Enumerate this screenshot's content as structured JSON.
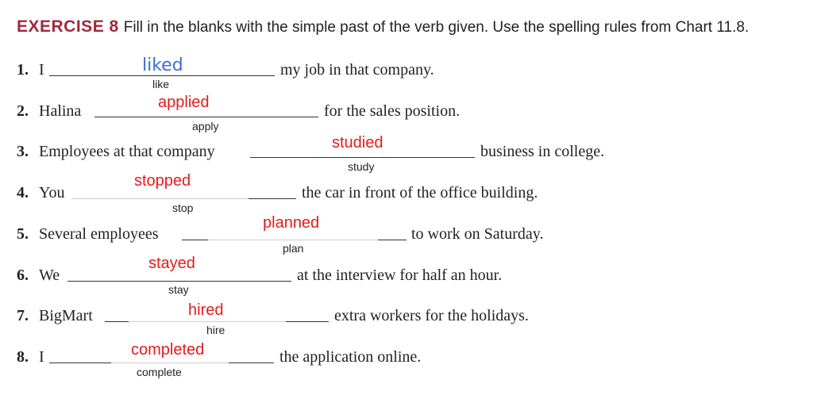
{
  "header": {
    "label": "EXERCISE 8",
    "instruction": "Fill in the blanks with the simple past of the verb given. Use the spelling rules from Chart 11.8."
  },
  "items": [
    {
      "num": "1.",
      "before": "I",
      "answer": "liked",
      "verb": "like",
      "after": "my job in that company."
    },
    {
      "num": "2.",
      "before": "Halina",
      "answer": "applied",
      "verb": "apply",
      "after": "for the sales position."
    },
    {
      "num": "3.",
      "before": "Employees at that company",
      "answer": "studied",
      "verb": "study",
      "after": "business in college."
    },
    {
      "num": "4.",
      "before": "You",
      "answer": "stopped",
      "verb": "stop",
      "after": "the car in front of the office building."
    },
    {
      "num": "5.",
      "before": "Several employees",
      "answer": "planned",
      "verb": "plan",
      "after": "to work on Saturday."
    },
    {
      "num": "6.",
      "before": "We",
      "answer": "stayed",
      "verb": "stay",
      "after": "at the interview for half an hour."
    },
    {
      "num": "7.",
      "before": "BigMart",
      "answer": "hired",
      "verb": "hire",
      "after": "extra workers for the holidays."
    },
    {
      "num": "8.",
      "before": "I",
      "answer": "completed",
      "verb": "complete",
      "after": "the application online."
    }
  ]
}
